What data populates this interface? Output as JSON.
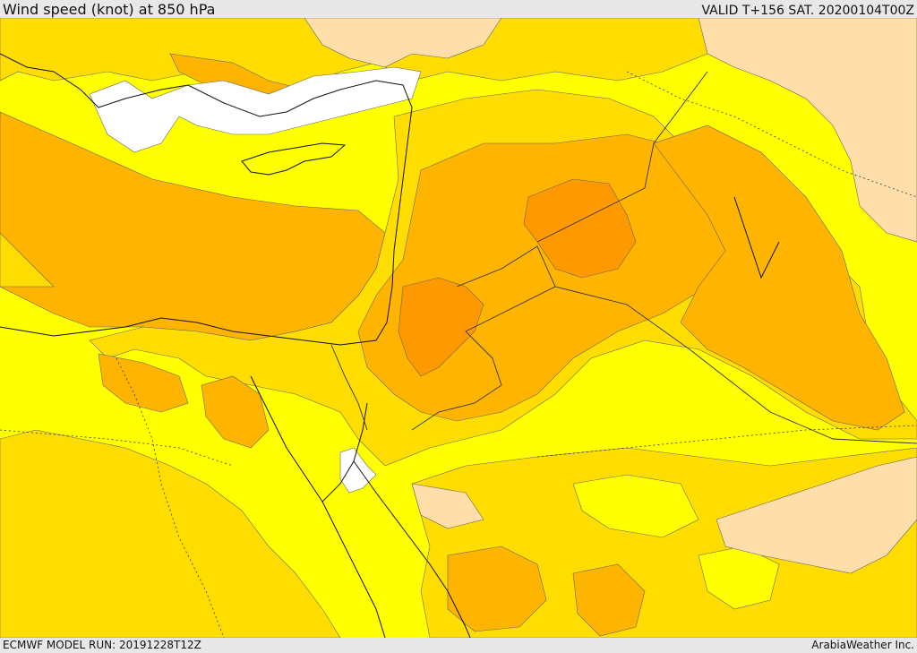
{
  "header": {
    "title": "Wind speed (knot) at 850 hPa",
    "valid": "VALID T+156 SAT. 20200104T00Z"
  },
  "footer": {
    "model_run": "ECMWF MODEL RUN: 20191228T12Z",
    "credit": "ArabiaWeather Inc."
  },
  "colors": {
    "band_lowest": "#ffffff",
    "band_low": "#ffdeaa",
    "band_mid": "#ffff00",
    "band_mid_high": "#ffdd00",
    "band_high": "#ffb400",
    "band_highest": "#ff9900",
    "coastline": "#111111",
    "border": "#333333"
  }
}
